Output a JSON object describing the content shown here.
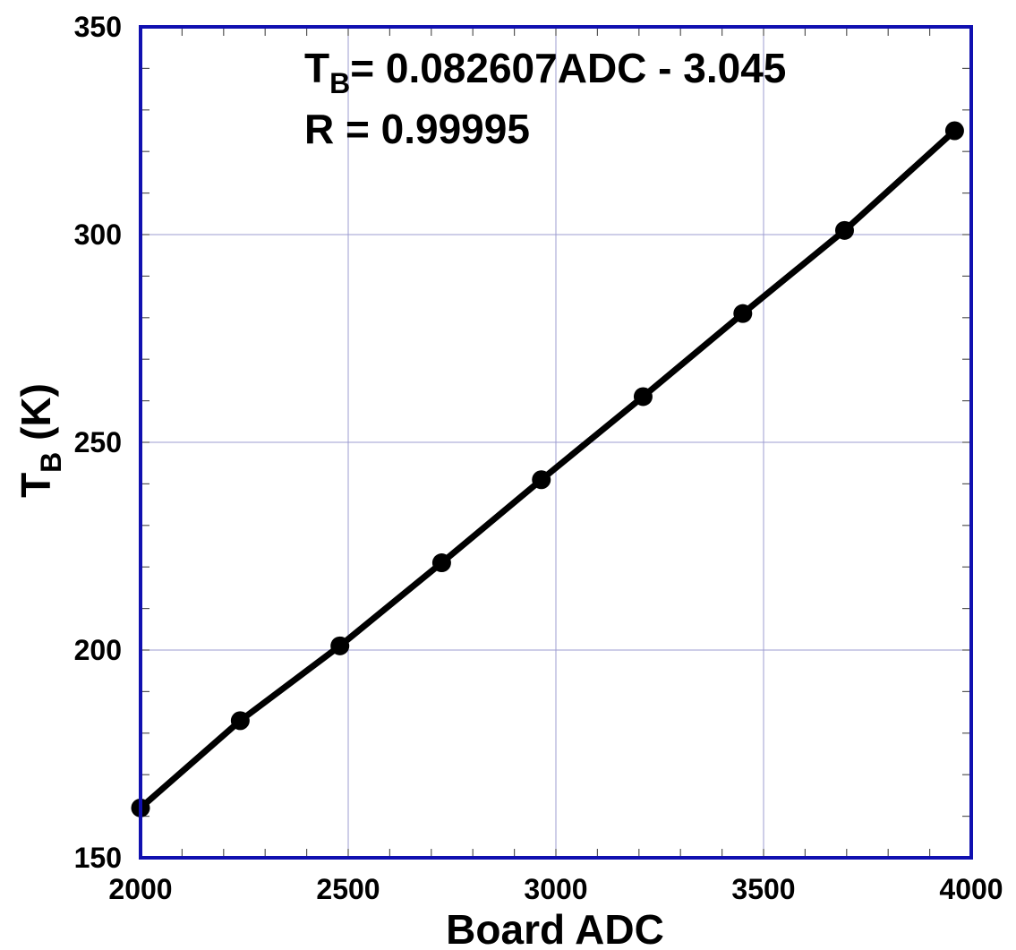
{
  "chart_data": {
    "type": "line",
    "xlabel": "Board ADC",
    "ylabel": {
      "main": "T",
      "sub": "B",
      "rest": " (K)"
    },
    "xlim": [
      2000,
      4000
    ],
    "ylim": [
      150,
      350
    ],
    "xticks": [
      "2000",
      "2500",
      "3000",
      "3500",
      "4000"
    ],
    "yticks": [
      "150",
      "200",
      "250",
      "300",
      "350"
    ],
    "grid": true,
    "annotation": {
      "eq_main": "T",
      "eq_sub": "B",
      "eq_rest": "= 0.082607ADC - 3.045",
      "r_line": "R = 0.99995"
    },
    "series": [
      {
        "x": [
          2000,
          2240,
          2480,
          2725,
          2965,
          3210,
          3450,
          3695,
          3960
        ],
        "y": [
          162,
          183,
          201,
          221,
          241,
          261,
          281,
          301,
          325
        ]
      }
    ],
    "colors": {
      "frame": "#1010b0",
      "grid": "#9c9cd0",
      "line": "#000000"
    }
  }
}
